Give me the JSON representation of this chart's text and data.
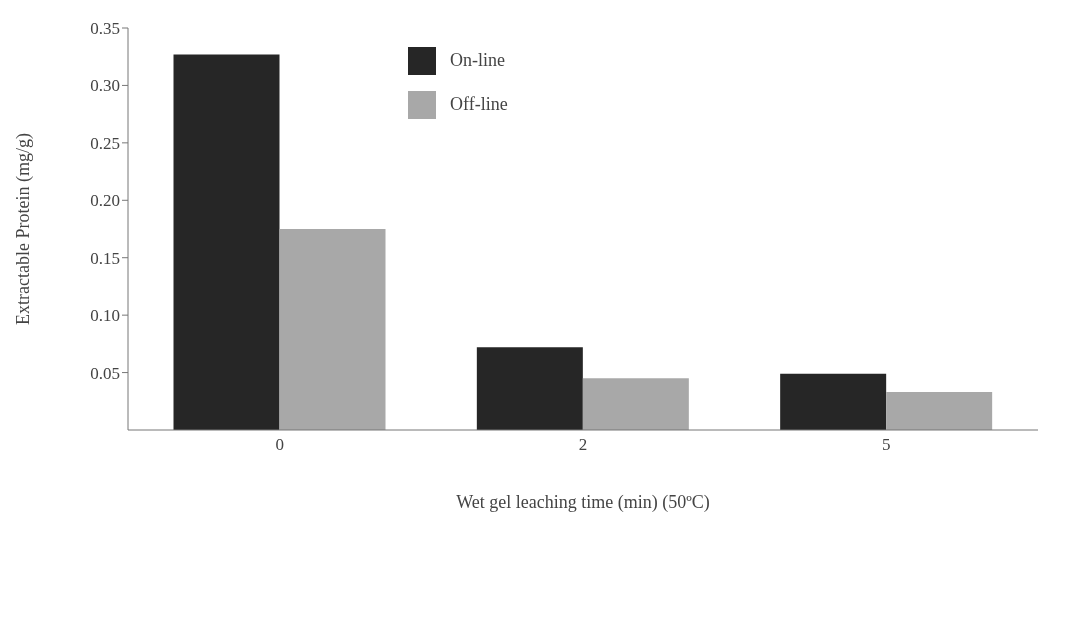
{
  "chart_data": {
    "type": "bar",
    "xlabel": "Wet gel leaching time (min) (50ºC)",
    "ylabel": "Extractable Protein (mg/g)",
    "categories": [
      "0",
      "2",
      "5"
    ],
    "series": [
      {
        "name": "On-line",
        "color": "#262626",
        "values": [
          0.327,
          0.072,
          0.049
        ]
      },
      {
        "name": "Off-line",
        "color": "#a8a8a8",
        "values": [
          0.175,
          0.045,
          0.033
        ]
      }
    ],
    "ylim": [
      0,
      0.35
    ],
    "yticks": [
      {
        "value": 0.05,
        "label": "0.05"
      },
      {
        "value": 0.1,
        "label": "0.10"
      },
      {
        "value": 0.15,
        "label": "0.15"
      },
      {
        "value": 0.2,
        "label": "0.20"
      },
      {
        "value": 0.25,
        "label": "0.25"
      },
      {
        "value": 0.3,
        "label": "0.30"
      },
      {
        "value": 0.35,
        "label": "0.35"
      }
    ],
    "grid": false,
    "legend": "top"
  }
}
